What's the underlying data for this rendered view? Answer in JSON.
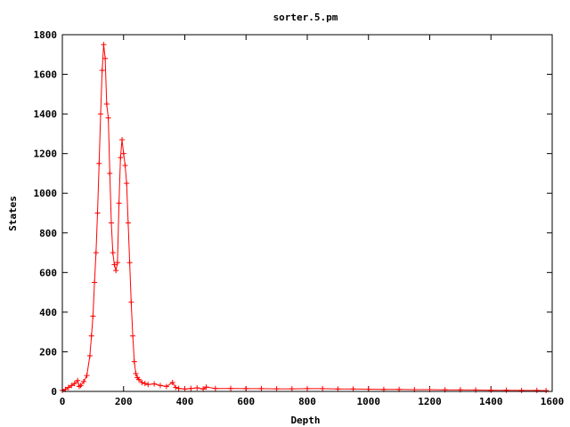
{
  "chart_data": {
    "type": "line",
    "title": "sorter.5.pm",
    "xlabel": "Depth",
    "ylabel": "States",
    "xlim": [
      0,
      1600
    ],
    "ylim": [
      0,
      1800
    ],
    "xticks": [
      0,
      200,
      400,
      600,
      800,
      1000,
      1200,
      1400,
      1600
    ],
    "yticks": [
      0,
      200,
      400,
      600,
      800,
      1000,
      1200,
      1400,
      1600,
      1800
    ],
    "grid": false,
    "legend": "none",
    "marker": "plus",
    "color": "#ff0000",
    "series": [
      {
        "x": [
          0,
          10,
          20,
          30,
          40,
          50,
          55,
          60,
          70,
          80,
          90,
          95,
          100,
          105,
          110,
          115,
          120,
          125,
          130,
          135,
          140,
          145,
          150,
          155,
          160,
          165,
          170,
          175,
          180,
          185,
          190,
          195,
          200,
          205,
          210,
          215,
          220,
          225,
          230,
          235,
          240,
          245,
          250,
          260,
          270,
          280,
          300,
          320,
          340,
          360,
          370,
          380,
          400,
          420,
          440,
          460,
          470,
          500,
          550,
          600,
          650,
          700,
          750,
          800,
          850,
          900,
          950,
          1000,
          1050,
          1100,
          1150,
          1200,
          1250,
          1300,
          1350,
          1400,
          1450,
          1500,
          1550,
          1580
        ],
        "y": [
          5,
          10,
          20,
          30,
          40,
          55,
          25,
          30,
          50,
          80,
          180,
          280,
          380,
          550,
          700,
          900,
          1150,
          1400,
          1620,
          1750,
          1680,
          1450,
          1380,
          1100,
          850,
          700,
          640,
          610,
          650,
          950,
          1180,
          1270,
          1200,
          1140,
          1050,
          850,
          650,
          450,
          280,
          150,
          90,
          70,
          60,
          45,
          40,
          35,
          38,
          30,
          25,
          45,
          20,
          15,
          12,
          15,
          18,
          12,
          22,
          15,
          15,
          14,
          14,
          13,
          13,
          14,
          14,
          12,
          12,
          11,
          10,
          10,
          9,
          9,
          8,
          8,
          7,
          6,
          6,
          5,
          5,
          4
        ]
      }
    ]
  }
}
